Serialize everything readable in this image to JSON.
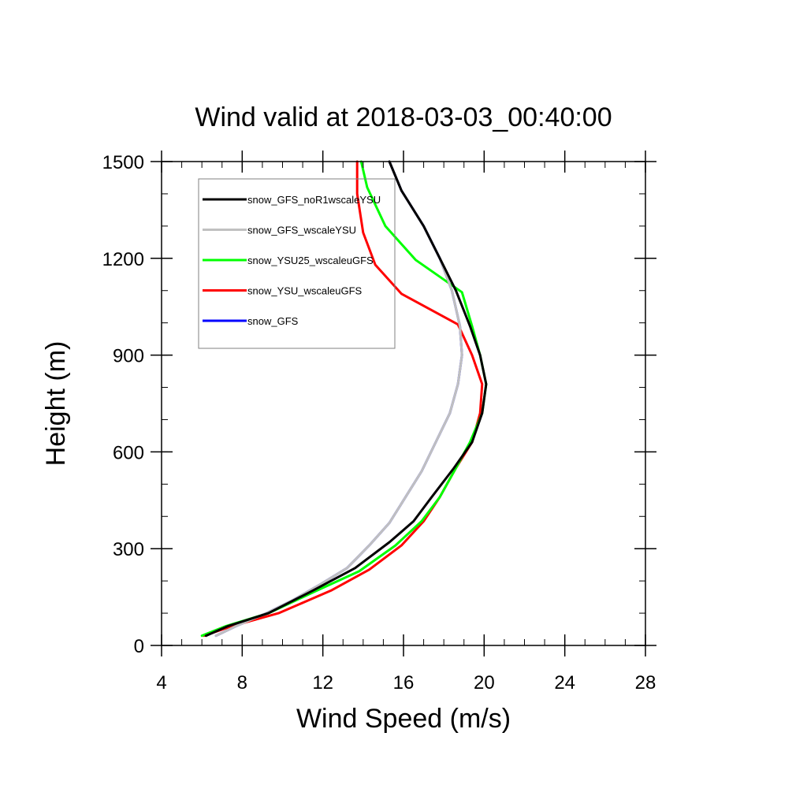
{
  "chart_data": {
    "type": "line",
    "title": "Wind valid at 2018-03-03_00:40:00",
    "xlabel": "Wind Speed (m/s)",
    "ylabel": "Height (m)",
    "xlim": [
      4,
      28
    ],
    "ylim": [
      0,
      1500
    ],
    "xticks": [
      4,
      8,
      12,
      16,
      20,
      24,
      28
    ],
    "yticks": [
      0,
      300,
      600,
      900,
      1200,
      1500
    ],
    "legend_position": "top-left (inside plot)",
    "legend_box": true,
    "series": [
      {
        "name": "snow_GFS_noR1wscaleYSU",
        "color": "#000000",
        "points": [
          [
            6.2,
            30
          ],
          [
            7.3,
            60
          ],
          [
            9.3,
            100
          ],
          [
            11.5,
            170
          ],
          [
            13.6,
            240
          ],
          [
            15.3,
            320
          ],
          [
            16.5,
            385
          ],
          [
            17.4,
            460
          ],
          [
            18.5,
            550
          ],
          [
            19.4,
            630
          ],
          [
            19.9,
            720
          ],
          [
            20.1,
            810
          ],
          [
            19.8,
            900
          ],
          [
            19.3,
            990
          ],
          [
            18.6,
            1100
          ],
          [
            17.8,
            1200
          ],
          [
            17.0,
            1300
          ],
          [
            15.9,
            1410
          ],
          [
            15.3,
            1500
          ]
        ]
      },
      {
        "name": "snow_GFS_wscaleYSU",
        "color": "#c0c0c0",
        "points": [
          [
            6.7,
            30
          ],
          [
            7.7,
            60
          ],
          [
            9.2,
            100
          ],
          [
            10.5,
            140
          ],
          [
            11.9,
            190
          ],
          [
            13.2,
            240
          ],
          [
            14.3,
            310
          ],
          [
            15.3,
            380
          ],
          [
            16.1,
            460
          ],
          [
            16.9,
            540
          ],
          [
            17.6,
            630
          ],
          [
            18.3,
            720
          ],
          [
            18.7,
            810
          ],
          [
            18.9,
            900
          ],
          [
            18.8,
            990
          ],
          [
            18.4,
            1100
          ],
          [
            17.8,
            1200
          ],
          [
            17.0,
            1300
          ],
          [
            15.9,
            1410
          ],
          [
            15.3,
            1500
          ]
        ]
      },
      {
        "name": "snow_YSU25_wscaleuGFS",
        "color": "#00ff00",
        "points": [
          [
            6.0,
            30
          ],
          [
            7.2,
            60
          ],
          [
            9.3,
            100
          ],
          [
            11.7,
            170
          ],
          [
            13.8,
            230
          ],
          [
            15.6,
            310
          ],
          [
            16.9,
            385
          ],
          [
            17.8,
            460
          ],
          [
            18.6,
            550
          ],
          [
            19.3,
            630
          ],
          [
            19.9,
            720
          ],
          [
            20.1,
            810
          ],
          [
            19.8,
            900
          ],
          [
            19.4,
            990
          ],
          [
            18.9,
            1095
          ],
          [
            16.6,
            1195
          ],
          [
            15.1,
            1300
          ],
          [
            14.2,
            1420
          ],
          [
            13.9,
            1500
          ]
        ]
      },
      {
        "name": "snow_YSU_wscaleuGFS",
        "color": "#ff0000",
        "points": [
          [
            6.1,
            30
          ],
          [
            7.5,
            60
          ],
          [
            9.8,
            100
          ],
          [
            12.4,
            170
          ],
          [
            14.3,
            235
          ],
          [
            15.9,
            310
          ],
          [
            17.0,
            385
          ],
          [
            17.8,
            460
          ],
          [
            18.6,
            550
          ],
          [
            19.4,
            630
          ],
          [
            19.8,
            720
          ],
          [
            19.9,
            810
          ],
          [
            19.4,
            900
          ],
          [
            18.7,
            995
          ],
          [
            15.9,
            1090
          ],
          [
            14.6,
            1180
          ],
          [
            14.0,
            1280
          ],
          [
            13.7,
            1400
          ],
          [
            13.7,
            1500
          ]
        ]
      },
      {
        "name": "snow_GFS",
        "color": "#0000ff",
        "points": [
          [
            6.7,
            30
          ],
          [
            7.7,
            60
          ],
          [
            9.2,
            100
          ],
          [
            10.5,
            140
          ],
          [
            11.9,
            190
          ],
          [
            13.2,
            240
          ],
          [
            14.3,
            310
          ],
          [
            15.3,
            380
          ],
          [
            16.1,
            460
          ],
          [
            16.9,
            540
          ],
          [
            17.6,
            630
          ],
          [
            18.3,
            720
          ],
          [
            18.7,
            810
          ],
          [
            18.9,
            900
          ],
          [
            18.8,
            990
          ],
          [
            18.4,
            1100
          ],
          [
            17.8,
            1200
          ],
          [
            17.0,
            1300
          ],
          [
            15.9,
            1410
          ],
          [
            15.3,
            1500
          ]
        ]
      }
    ]
  }
}
